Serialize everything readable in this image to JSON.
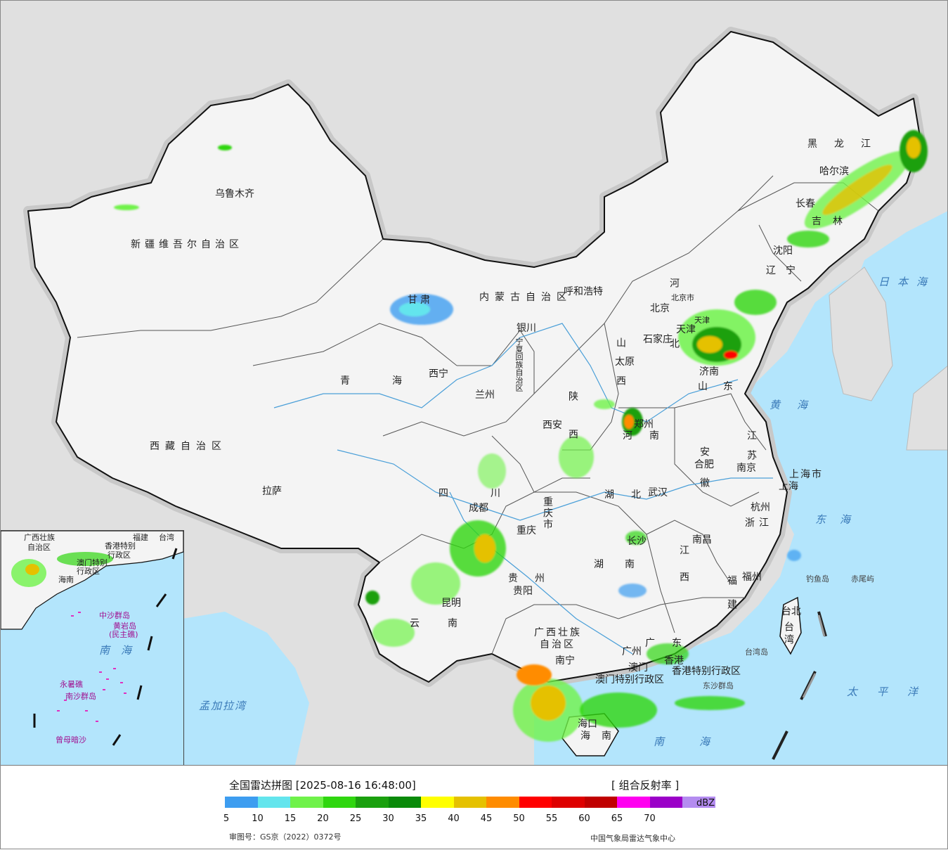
{
  "legend": {
    "title": "全国雷达拼图 [2025-08-16 16:48:00]",
    "product": "[ 组合反射率 ]",
    "unit": "dBZ",
    "ticks": [
      "5",
      "10",
      "15",
      "20",
      "25",
      "30",
      "35",
      "40",
      "45",
      "50",
      "55",
      "60",
      "65",
      "70"
    ],
    "colors": [
      "#3d9df0",
      "#63e5ed",
      "#6ff24a",
      "#2fd60f",
      "#1aa00e",
      "#0a8a0a",
      "#ffff00",
      "#e5c100",
      "#ff8c00",
      "#ff0000",
      "#de0000",
      "#c00000",
      "#ff00f0",
      "#9b00c8",
      "#b48cf0"
    ],
    "approval": "审图号：GS京（2022）0372号",
    "source": "中国气象局雷达气象中心"
  },
  "cities": [
    {
      "name": "乌鲁木齐",
      "id": "urumqi"
    },
    {
      "name": "拉萨",
      "id": "lhasa"
    },
    {
      "name": "西宁",
      "id": "xining"
    },
    {
      "name": "兰州",
      "id": "lanzhou"
    },
    {
      "name": "银川",
      "id": "yinchuan"
    },
    {
      "name": "呼和浩特",
      "id": "hohhot"
    },
    {
      "name": "北京",
      "id": "beijing"
    },
    {
      "name": "天津",
      "id": "tianjin"
    },
    {
      "name": "石家庄",
      "id": "shijiazhuang"
    },
    {
      "name": "太原",
      "id": "taiyuan"
    },
    {
      "name": "济南",
      "id": "jinan"
    },
    {
      "name": "郑州",
      "id": "zhengzhou"
    },
    {
      "name": "西安",
      "id": "xian"
    },
    {
      "name": "合肥",
      "id": "hefei"
    },
    {
      "name": "南京",
      "id": "nanjing"
    },
    {
      "name": "上海",
      "id": "shanghai"
    },
    {
      "name": "杭州",
      "id": "hangzhou"
    },
    {
      "name": "武汉",
      "id": "wuhan"
    },
    {
      "name": "成都",
      "id": "chengdu"
    },
    {
      "name": "重庆",
      "id": "chongqing"
    },
    {
      "name": "长沙",
      "id": "changsha"
    },
    {
      "name": "南昌",
      "id": "nanchang"
    },
    {
      "name": "福州",
      "id": "fuzhou"
    },
    {
      "name": "贵阳",
      "id": "guiyang"
    },
    {
      "name": "昆明",
      "id": "kunming"
    },
    {
      "name": "南宁",
      "id": "nanning"
    },
    {
      "name": "广州",
      "id": "guangzhou"
    },
    {
      "name": "香港",
      "id": "hongkong"
    },
    {
      "name": "澳门",
      "id": "macau"
    },
    {
      "name": "海口",
      "id": "haikou"
    },
    {
      "name": "台北",
      "id": "taipei"
    },
    {
      "name": "沈阳",
      "id": "shenyang"
    },
    {
      "name": "长春",
      "id": "changchun"
    },
    {
      "name": "哈尔滨",
      "id": "harbin"
    }
  ],
  "regions": [
    {
      "name": "新疆维吾尔自治区",
      "id": "xinjiang"
    },
    {
      "name": "西藏自治区",
      "id": "xizang"
    },
    {
      "name": "青海",
      "id": "qinghai"
    },
    {
      "name": "甘肃",
      "id": "gansu"
    },
    {
      "name": "内蒙古自治区",
      "id": "neimenggu"
    },
    {
      "name": "宁夏回族自治区",
      "id": "ningxia"
    },
    {
      "name": "陕西",
      "id": "shaanxi"
    },
    {
      "name": "山西",
      "id": "shanxi"
    },
    {
      "name": "河北",
      "id": "hebei"
    },
    {
      "name": "山东",
      "id": "shandong"
    },
    {
      "name": "河南",
      "id": "henan"
    },
    {
      "name": "四川",
      "id": "sichuan"
    },
    {
      "name": "重庆市",
      "id": "chongqingshi"
    },
    {
      "name": "湖北",
      "id": "hubei"
    },
    {
      "name": "湖南",
      "id": "hunan"
    },
    {
      "name": "贵州",
      "id": "guizhou"
    },
    {
      "name": "云南",
      "id": "yunnan"
    },
    {
      "name": "广西壮族",
      "id": "guangxi1"
    },
    {
      "name": "自治区",
      "id": "guangxi2"
    },
    {
      "name": "广东",
      "id": "guangdong"
    },
    {
      "name": "江西",
      "id": "jiangxi"
    },
    {
      "name": "安徽",
      "id": "anhui"
    },
    {
      "name": "江苏",
      "id": "jiangsu"
    },
    {
      "name": "浙江",
      "id": "zhejiang"
    },
    {
      "name": "福建",
      "id": "fujian"
    },
    {
      "name": "上海市",
      "id": "shanghaishi"
    },
    {
      "name": "海南",
      "id": "hainan"
    },
    {
      "name": "台湾",
      "id": "taiwan"
    },
    {
      "name": "辽宁",
      "id": "liaoning"
    },
    {
      "name": "吉林",
      "id": "jilin"
    },
    {
      "name": "黑龙江",
      "id": "heilongjiang"
    },
    {
      "name": "北京市",
      "id": "beijingshi"
    },
    {
      "name": "天津",
      "id": "tianjinshi"
    },
    {
      "name": "香港特别行政区",
      "id": "hk-sar"
    },
    {
      "name": "澳门特别行政区",
      "id": "mo-sar"
    }
  ],
  "seas": [
    {
      "name": "日本海",
      "id": "japan-sea"
    },
    {
      "name": "黄海",
      "id": "yellow-sea"
    },
    {
      "name": "东海",
      "id": "east-sea"
    },
    {
      "name": "太平洋",
      "id": "pacific"
    },
    {
      "name": "南海",
      "id": "south-sea"
    },
    {
      "name": "孟加拉湾",
      "id": "bay-bengal"
    }
  ],
  "islands": [
    {
      "name": "钓鱼岛",
      "id": "diaoyu"
    },
    {
      "name": "赤尾屿",
      "id": "chiwei"
    },
    {
      "name": "台湾岛",
      "id": "taiwan-island"
    },
    {
      "name": "东沙群岛",
      "id": "dongsha"
    }
  ],
  "inset": {
    "sea": "南海",
    "labels": [
      {
        "name": "广西壮族",
        "id": "inset-guangxi1"
      },
      {
        "name": "自治区",
        "id": "inset-guangxi2"
      },
      {
        "name": "香港特别",
        "id": "inset-hk1"
      },
      {
        "name": "行政区",
        "id": "inset-hk2"
      },
      {
        "name": "澳门特别",
        "id": "inset-mo1"
      },
      {
        "name": "行政区",
        "id": "inset-mo2"
      },
      {
        "name": "台湾",
        "id": "inset-taiwan"
      },
      {
        "name": "福建",
        "id": "inset-fujian"
      },
      {
        "name": "海南",
        "id": "inset-hainan"
      },
      {
        "name": "中沙群岛",
        "id": "inset-zhongsha"
      },
      {
        "name": "黄岩岛",
        "id": "inset-huangyan"
      },
      {
        "name": "(民主礁)",
        "id": "inset-minzhu"
      },
      {
        "name": "永暑礁",
        "id": "inset-yongshu"
      },
      {
        "name": "南沙群岛",
        "id": "inset-nansha"
      },
      {
        "name": "曾母暗沙",
        "id": "inset-zengmu"
      }
    ]
  }
}
